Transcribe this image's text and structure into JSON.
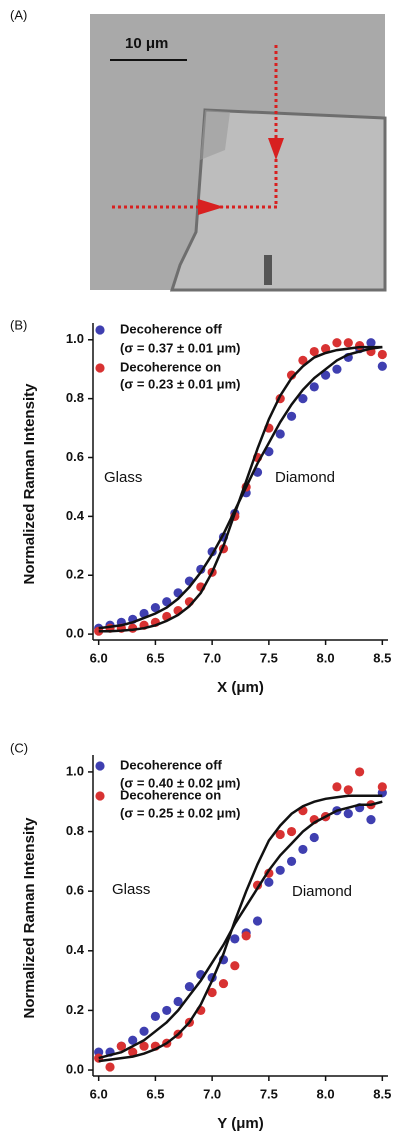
{
  "image_panel": {
    "label": "(A)",
    "scale_bar": "10 μm"
  },
  "chart_data": [
    {
      "type": "scatter",
      "panel_label": "(B)",
      "xlabel": "X (μm)",
      "ylabel": "Normalized Raman Intensity",
      "annotations": [
        "Glass",
        "Diamond"
      ],
      "xlim": [
        5.95,
        8.55
      ],
      "ylim": [
        -0.02,
        1.04
      ],
      "xticks": [
        {
          "value": 6,
          "label": "6.0"
        },
        6.5,
        {
          "value": 7,
          "label": "7.0"
        },
        7.5,
        {
          "value": 8,
          "label": "8.0"
        },
        8.5
      ],
      "yticks": [
        {
          "value": 0,
          "label": "0.0"
        },
        0.2,
        0.4,
        0.6,
        0.8,
        {
          "value": 1,
          "label": "1.0"
        }
      ],
      "x": [
        6.0,
        6.1,
        6.2,
        6.3,
        6.4,
        6.5,
        6.6,
        6.7,
        6.8,
        6.9,
        7.0,
        7.1,
        7.2,
        7.3,
        7.4,
        7.5,
        7.6,
        7.7,
        7.8,
        7.9,
        8.0,
        8.1,
        8.2,
        8.3,
        8.4,
        8.5
      ],
      "series": [
        {
          "name": "Decoherence off",
          "legend_subtitle": "(σ = 0.37 ± 0.01 μm)",
          "color": "#3f3fb0",
          "values": [
            0.02,
            0.03,
            0.04,
            0.05,
            0.07,
            0.09,
            0.11,
            0.14,
            0.18,
            0.22,
            0.28,
            0.33,
            0.41,
            0.48,
            0.55,
            0.62,
            0.68,
            0.74,
            0.8,
            0.84,
            0.88,
            0.9,
            0.94,
            0.97,
            0.99,
            0.91
          ]
        },
        {
          "name": "Decoherence on",
          "legend_subtitle": "(σ = 0.23 ± 0.01 μm)",
          "color": "#d83232",
          "values": [
            0.01,
            0.02,
            0.02,
            0.02,
            0.03,
            0.04,
            0.06,
            0.08,
            0.11,
            0.16,
            0.21,
            0.29,
            0.4,
            0.5,
            0.6,
            0.7,
            0.8,
            0.88,
            0.93,
            0.96,
            0.97,
            0.99,
            0.99,
            0.98,
            0.96,
            0.95
          ]
        }
      ],
      "fits": [
        {
          "color": "#111111",
          "values": [
            0.02,
            0.025,
            0.03,
            0.04,
            0.055,
            0.07,
            0.09,
            0.12,
            0.16,
            0.21,
            0.27,
            0.34,
            0.42,
            0.5,
            0.58,
            0.65,
            0.72,
            0.78,
            0.83,
            0.87,
            0.9,
            0.93,
            0.95,
            0.96,
            0.97,
            0.975
          ]
        },
        {
          "color": "#111111",
          "values": [
            0.01,
            0.01,
            0.012,
            0.015,
            0.02,
            0.03,
            0.045,
            0.065,
            0.095,
            0.14,
            0.21,
            0.3,
            0.41,
            0.52,
            0.63,
            0.73,
            0.81,
            0.87,
            0.91,
            0.94,
            0.955,
            0.965,
            0.97,
            0.975,
            0.975,
            0.975
          ]
        }
      ]
    },
    {
      "type": "scatter",
      "panel_label": "(C)",
      "xlabel": "Y (μm)",
      "ylabel": "Normalized Raman Intensity",
      "annotations": [
        "Glass",
        "Diamond"
      ],
      "xlim": [
        5.95,
        8.55
      ],
      "ylim": [
        -0.02,
        1.04
      ],
      "xticks": [
        {
          "value": 6,
          "label": "6.0"
        },
        6.5,
        {
          "value": 7,
          "label": "7.0"
        },
        7.5,
        {
          "value": 8,
          "label": "8.0"
        },
        8.5
      ],
      "yticks": [
        {
          "value": 0,
          "label": "0.0"
        },
        0.2,
        0.4,
        0.6,
        0.8,
        {
          "value": 1,
          "label": "1.0"
        }
      ],
      "x": [
        6.0,
        6.1,
        6.2,
        6.3,
        6.4,
        6.5,
        6.6,
        6.7,
        6.8,
        6.9,
        7.0,
        7.1,
        7.2,
        7.3,
        7.4,
        7.5,
        7.6,
        7.7,
        7.8,
        7.9,
        8.0,
        8.1,
        8.2,
        8.3,
        8.4,
        8.5
      ],
      "series": [
        {
          "name": "Decoherence off",
          "legend_subtitle": "(σ = 0.40 ± 0.02 μm)",
          "color": "#3f3fb0",
          "values": [
            0.06,
            0.06,
            0.08,
            0.1,
            0.13,
            0.18,
            0.2,
            0.23,
            0.28,
            0.32,
            0.31,
            0.37,
            0.44,
            0.46,
            0.5,
            0.63,
            0.67,
            0.7,
            0.74,
            0.78,
            0.85,
            0.87,
            0.86,
            0.88,
            0.84,
            0.93
          ]
        },
        {
          "name": "Decoherence on",
          "legend_subtitle": "(σ = 0.25 ± 0.02 μm)",
          "color": "#d83232",
          "values": [
            0.04,
            0.01,
            0.08,
            0.06,
            0.08,
            0.08,
            0.09,
            0.12,
            0.16,
            0.2,
            0.26,
            0.29,
            0.35,
            0.45,
            0.62,
            0.66,
            0.79,
            0.8,
            0.87,
            0.84,
            0.85,
            0.95,
            0.94,
            1.0,
            0.89,
            0.95
          ]
        }
      ],
      "fits": [
        {
          "color": "#111111",
          "values": [
            0.04,
            0.05,
            0.06,
            0.08,
            0.1,
            0.13,
            0.16,
            0.2,
            0.25,
            0.3,
            0.36,
            0.42,
            0.49,
            0.55,
            0.61,
            0.67,
            0.72,
            0.76,
            0.8,
            0.83,
            0.85,
            0.87,
            0.88,
            0.89,
            0.89,
            0.9
          ]
        },
        {
          "color": "#111111",
          "values": [
            0.03,
            0.035,
            0.04,
            0.045,
            0.055,
            0.07,
            0.09,
            0.12,
            0.16,
            0.22,
            0.3,
            0.39,
            0.5,
            0.6,
            0.69,
            0.77,
            0.82,
            0.86,
            0.885,
            0.9,
            0.91,
            0.915,
            0.92,
            0.92,
            0.92,
            0.92
          ]
        }
      ]
    }
  ]
}
